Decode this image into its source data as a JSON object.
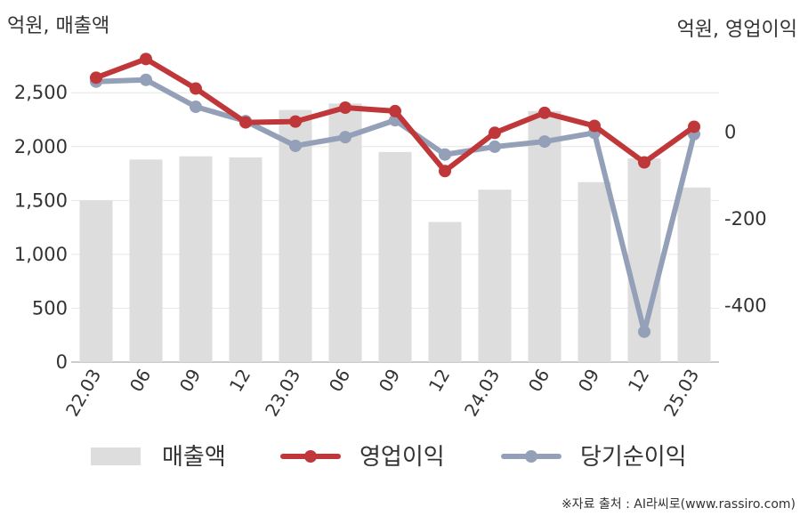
{
  "chart_data": {
    "type": "bar+line",
    "y_left_unit": "억원, 매출액",
    "y_right_unit": "억원, 영업이익",
    "categories": [
      "22.03",
      "06",
      "09",
      "12",
      "23.03",
      "06",
      "09",
      "12",
      "24.03",
      "06",
      "09",
      "12",
      "25.03"
    ],
    "y_left_ticks": [
      "0",
      "500",
      "1,000",
      "1,500",
      "2,000",
      "2,500"
    ],
    "y_left_lim": [
      0,
      2700
    ],
    "y_right_ticks": [
      "0",
      "-200",
      "-400"
    ],
    "y_right_lim": [
      -530,
      140
    ],
    "series": [
      {
        "name": "매출액",
        "kind": "bar",
        "axis": "left",
        "color": "#dddddd",
        "values": [
          1500,
          1880,
          1910,
          1900,
          2340,
          2400,
          1950,
          1300,
          1600,
          2330,
          1670,
          1890,
          1620
        ]
      },
      {
        "name": "영업이익",
        "kind": "line",
        "axis": "right",
        "color": "#c0373a",
        "values": [
          125,
          168,
          100,
          22,
          24,
          56,
          48,
          -90,
          -2,
          44,
          14,
          -70,
          12
        ]
      },
      {
        "name": "당기순이익",
        "kind": "line",
        "axis": "right",
        "color": "#94a0b8",
        "values": [
          116,
          120,
          58,
          25,
          -32,
          -12,
          27,
          -52,
          -34,
          -22,
          -2,
          -460,
          -5
        ]
      }
    ],
    "grid": true,
    "legend_position": "bottom"
  },
  "source": "※자료 출처 : AI라씨로(www.rassiro.com)"
}
